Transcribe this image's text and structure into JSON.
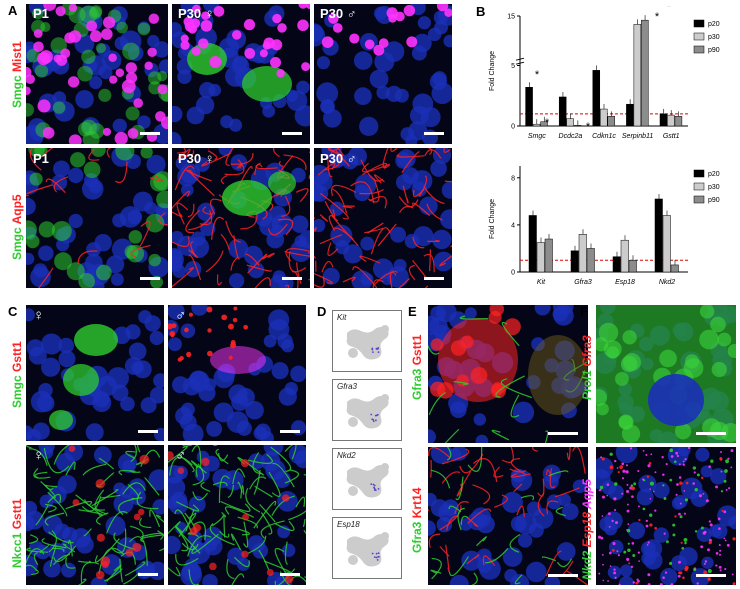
{
  "panels": {
    "A": {
      "letter": "A",
      "row1_label_green": "Smgc",
      "row1_label_red": "Mist1",
      "row2_label_green": "Smgc",
      "row2_label_red": "Aqp5",
      "tiles": [
        "P1",
        "P30 ♀",
        "P30 ♂",
        "P1",
        "P30 ♀",
        "P30 ♂"
      ]
    },
    "B": {
      "letter": "B"
    },
    "C": {
      "letter": "C",
      "row1_label_green": "Smgc",
      "row1_label_red": "Gstt1",
      "row2_label_green": "Nkcc1",
      "row2_label_red": "Gstt1",
      "tiles": [
        "♀",
        "♂",
        "♀",
        "♂"
      ]
    },
    "D": {
      "letter": "D",
      "genes": [
        "Kit",
        "Gfra3",
        "Nkd2",
        "Esp18"
      ]
    },
    "E": {
      "letter": "E",
      "row1_label_green": "Gfra3",
      "row1_label_red": "Gstt1",
      "row2_label_green": "Gfra3",
      "row2_label_red": "Krt14"
    },
    "F": {
      "letter": "F",
      "row1_label_green": "Prol1",
      "row1_label_red": "Gfra3",
      "row2_label_green": "Nkd2",
      "row2_label_red": "Esp18",
      "row2_label_magenta": "Aqp5"
    }
  },
  "colors": {
    "green": "#2ecc2e",
    "red": "#ff2222",
    "magenta": "#ff33ff",
    "nuclei_blue": "#1a2fb8",
    "p20": "#000000",
    "p30": "#cccccc",
    "p90": "#8c8c8c",
    "threshold": "#dd0000"
  },
  "chart_data": [
    {
      "type": "bar",
      "ylabel": "Fold Change",
      "categories": [
        "Smgc",
        "Dcdc2a",
        "Cdkn1c",
        "Serpinb11",
        "Gstt1"
      ],
      "y_ticks": [
        "0",
        "5",
        "15"
      ],
      "y_axis_break": true,
      "threshold_line": 1,
      "series": [
        {
          "name": "p20",
          "values": [
            3.2,
            2.4,
            4.6,
            1.8,
            1.0
          ]
        },
        {
          "name": "p30",
          "values": [
            0.15,
            0.6,
            1.4,
            13.0,
            0.9
          ]
        },
        {
          "name": "p90",
          "values": [
            0.35,
            0.05,
            0.8,
            14.0,
            0.8
          ]
        }
      ],
      "annotations": [
        "*",
        "*",
        "*",
        "*",
        "*"
      ],
      "legend": "top-right"
    },
    {
      "type": "bar",
      "ylabel": "Fold Change",
      "categories": [
        "Kit",
        "Gfra3",
        "Esp18",
        "Nkd2"
      ],
      "y_ticks": [
        "0",
        "4",
        "8"
      ],
      "ylim": [
        0,
        9
      ],
      "threshold_line": 1,
      "series": [
        {
          "name": "p20",
          "values": [
            4.8,
            1.8,
            1.3,
            6.2
          ]
        },
        {
          "name": "p30",
          "values": [
            2.5,
            3.2,
            2.7,
            4.8
          ]
        },
        {
          "name": "p90",
          "values": [
            2.8,
            2.0,
            1.0,
            0.6
          ]
        }
      ],
      "annotations": [
        "*"
      ],
      "legend": "top-right"
    }
  ]
}
